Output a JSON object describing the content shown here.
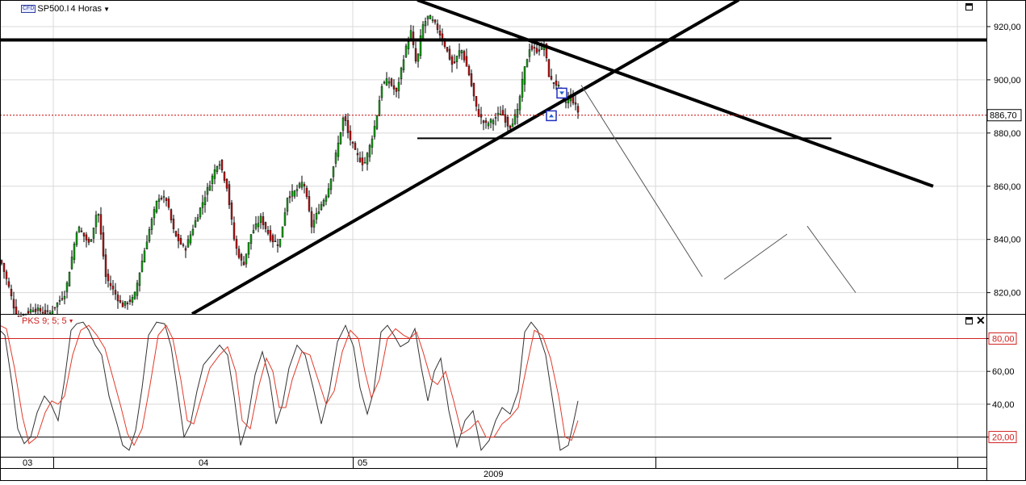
{
  "header": {
    "badge": "CFD",
    "symbol": "SP500.I",
    "timeframe": "4 Horas",
    "dropdown_icon": "chevron-down-icon"
  },
  "indicator": {
    "label": "PKS 9; 5; 5",
    "dropdown_icon": "chevron-down-icon",
    "overbought": 80,
    "oversold": 20,
    "colors": {
      "k": "#333333",
      "d": "#e23a2a",
      "levels": "#d02020"
    }
  },
  "price_axis": {
    "ticks": [
      "920,00",
      "900,00",
      "880,00",
      "860,00",
      "840,00",
      "820,00"
    ],
    "last_price_label": "886,70",
    "last_price": 886.7
  },
  "osc_axis": {
    "ticks": [
      "80,00",
      "60,00",
      "40,00",
      "20,00"
    ]
  },
  "time_axis": {
    "months": [
      "03",
      "04",
      "05"
    ],
    "year": "2009"
  },
  "pane_buttons": {
    "maximize_icon": "maximize-icon",
    "close_icon": "close-icon"
  },
  "chart_data": [
    {
      "type": "candlestick",
      "ylim": [
        812,
        930
      ],
      "grid": true,
      "price_anchors": [
        [
          0,
          832
        ],
        [
          10,
          822
        ],
        [
          20,
          810
        ],
        [
          40,
          814
        ],
        [
          60,
          812
        ],
        [
          80,
          820
        ],
        [
          95,
          845
        ],
        [
          110,
          838
        ],
        [
          120,
          852
        ],
        [
          130,
          826
        ],
        [
          150,
          815
        ],
        [
          165,
          818
        ],
        [
          175,
          832
        ],
        [
          185,
          845
        ],
        [
          195,
          856
        ],
        [
          205,
          855
        ],
        [
          215,
          842
        ],
        [
          228,
          836
        ],
        [
          240,
          846
        ],
        [
          255,
          858
        ],
        [
          270,
          870
        ],
        [
          280,
          860
        ],
        [
          290,
          838
        ],
        [
          300,
          830
        ],
        [
          310,
          842
        ],
        [
          322,
          848
        ],
        [
          335,
          840
        ],
        [
          345,
          838
        ],
        [
          355,
          856
        ],
        [
          365,
          858
        ],
        [
          375,
          862
        ],
        [
          385,
          845
        ],
        [
          395,
          852
        ],
        [
          405,
          858
        ],
        [
          418,
          876
        ],
        [
          425,
          887
        ],
        [
          430,
          880
        ],
        [
          440,
          872
        ],
        [
          450,
          868
        ],
        [
          458,
          876
        ],
        [
          465,
          885
        ],
        [
          472,
          898
        ],
        [
          480,
          900
        ],
        [
          490,
          895
        ],
        [
          500,
          910
        ],
        [
          508,
          918
        ],
        [
          515,
          905
        ],
        [
          522,
          920
        ],
        [
          530,
          924
        ],
        [
          540,
          920
        ],
        [
          550,
          913
        ],
        [
          560,
          905
        ],
        [
          570,
          912
        ],
        [
          580,
          902
        ],
        [
          590,
          888
        ],
        [
          600,
          883
        ],
        [
          610,
          885
        ],
        [
          620,
          888
        ],
        [
          630,
          882
        ],
        [
          640,
          888
        ],
        [
          648,
          903
        ],
        [
          655,
          912
        ],
        [
          665,
          911
        ],
        [
          673,
          913
        ],
        [
          680,
          900
        ],
        [
          690,
          898
        ],
        [
          698,
          891
        ],
        [
          706,
          894
        ],
        [
          715,
          888
        ]
      ],
      "overlay_lines": [
        {
          "name": "upper-trendline",
          "from": [
            517,
            930
          ],
          "to": [
            1156,
            860
          ]
        },
        {
          "name": "lower-trendline",
          "from": [
            238,
            812
          ],
          "to": [
            915,
            930
          ]
        },
        {
          "name": "resistance-line",
          "from": [
            0,
            915
          ],
          "to": [
            1222,
            915
          ]
        },
        {
          "name": "support-line",
          "from": [
            517,
            878
          ],
          "to": [
            1030,
            878
          ]
        }
      ],
      "projection_path": [
        [
          720,
          898
        ],
        [
          870,
          826
        ],
        [
          897,
          825
        ],
        [
          975,
          842
        ],
        [
          1000,
          845
        ],
        [
          1060,
          820
        ]
      ]
    },
    {
      "type": "line",
      "ylim": [
        8,
        95
      ],
      "levels": [
        80,
        20
      ],
      "series": [
        {
          "color": "#333333",
          "anchors": [
            [
              0,
              85
            ],
            [
              6,
              82
            ],
            [
              15,
              52
            ],
            [
              22,
              25
            ],
            [
              30,
              16
            ],
            [
              38,
              20
            ],
            [
              46,
              35
            ],
            [
              55,
              45
            ],
            [
              63,
              40
            ],
            [
              72,
              30
            ],
            [
              80,
              55
            ],
            [
              88,
              85
            ],
            [
              95,
              89
            ],
            [
              103,
              90
            ],
            [
              110,
              85
            ],
            [
              118,
              76
            ],
            [
              126,
              70
            ],
            [
              135,
              45
            ],
            [
              145,
              28
            ],
            [
              152,
              15
            ],
            [
              160,
              12
            ],
            [
              168,
              24
            ],
            [
              176,
              50
            ],
            [
              184,
              82
            ],
            [
              194,
              90
            ],
            [
              204,
              89
            ],
            [
              212,
              75
            ],
            [
              220,
              48
            ],
            [
              228,
              20
            ],
            [
              236,
              28
            ],
            [
              244,
              48
            ],
            [
              252,
              64
            ],
            [
              262,
              70
            ],
            [
              272,
              76
            ],
            [
              282,
              70
            ],
            [
              290,
              45
            ],
            [
              298,
              15
            ],
            [
              306,
              28
            ],
            [
              316,
              58
            ],
            [
              325,
              72
            ],
            [
              334,
              55
            ],
            [
              342,
              28
            ],
            [
              350,
              40
            ],
            [
              358,
              62
            ],
            [
              368,
              76
            ],
            [
              378,
              70
            ],
            [
              388,
              50
            ],
            [
              398,
              28
            ],
            [
              408,
              48
            ],
            [
              418,
              78
            ],
            [
              428,
              88
            ],
            [
              438,
              75
            ],
            [
              446,
              50
            ],
            [
              455,
              34
            ],
            [
              463,
              48
            ],
            [
              472,
              84
            ],
            [
              480,
              88
            ],
            [
              488,
              82
            ],
            [
              496,
              75
            ],
            [
              506,
              78
            ],
            [
              514,
              86
            ],
            [
              522,
              62
            ],
            [
              530,
              42
            ],
            [
              538,
              60
            ],
            [
              546,
              68
            ],
            [
              556,
              36
            ],
            [
              566,
              14
            ],
            [
              576,
              30
            ],
            [
              586,
              36
            ],
            [
              596,
              12
            ],
            [
              606,
              18
            ],
            [
              614,
              30
            ],
            [
              622,
              38
            ],
            [
              632,
              34
            ],
            [
              642,
              48
            ],
            [
              650,
              84
            ],
            [
              658,
              90
            ],
            [
              666,
              85
            ],
            [
              676,
              70
            ],
            [
              686,
              38
            ],
            [
              694,
              12
            ],
            [
              704,
              15
            ],
            [
              710,
              28
            ],
            [
              716,
              42
            ]
          ]
        },
        {
          "color": "#e23a2a",
          "anchors": [
            [
              0,
              88
            ],
            [
              8,
              86
            ],
            [
              18,
              62
            ],
            [
              28,
              32
            ],
            [
              36,
              16
            ],
            [
              46,
              20
            ],
            [
              56,
              35
            ],
            [
              64,
              42
            ],
            [
              72,
              40
            ],
            [
              80,
              45
            ],
            [
              90,
              70
            ],
            [
              100,
              85
            ],
            [
              110,
              88
            ],
            [
              120,
              82
            ],
            [
              130,
              74
            ],
            [
              140,
              56
            ],
            [
              150,
              38
            ],
            [
              158,
              22
            ],
            [
              166,
              15
            ],
            [
              176,
              25
            ],
            [
              186,
              52
            ],
            [
              196,
              82
            ],
            [
              206,
              88
            ],
            [
              214,
              80
            ],
            [
              224,
              55
            ],
            [
              232,
              30
            ],
            [
              240,
              28
            ],
            [
              250,
              45
            ],
            [
              260,
              62
            ],
            [
              272,
              70
            ],
            [
              282,
              75
            ],
            [
              292,
              60
            ],
            [
              300,
              30
            ],
            [
              310,
              25
            ],
            [
              320,
              50
            ],
            [
              330,
              68
            ],
            [
              338,
              60
            ],
            [
              346,
              38
            ],
            [
              354,
              38
            ],
            [
              362,
              55
            ],
            [
              374,
              72
            ],
            [
              384,
              70
            ],
            [
              394,
              55
            ],
            [
              404,
              40
            ],
            [
              414,
              48
            ],
            [
              424,
              72
            ],
            [
              434,
              85
            ],
            [
              444,
              80
            ],
            [
              452,
              60
            ],
            [
              460,
              44
            ],
            [
              470,
              55
            ],
            [
              480,
              80
            ],
            [
              490,
              86
            ],
            [
              500,
              82
            ],
            [
              508,
              80
            ],
            [
              516,
              84
            ],
            [
              524,
              72
            ],
            [
              534,
              55
            ],
            [
              542,
              52
            ],
            [
              552,
              60
            ],
            [
              562,
              42
            ],
            [
              572,
              22
            ],
            [
              582,
              25
            ],
            [
              592,
              30
            ],
            [
              602,
              20
            ],
            [
              612,
              20
            ],
            [
              622,
              28
            ],
            [
              632,
              32
            ],
            [
              642,
              38
            ],
            [
              652,
              62
            ],
            [
              662,
              85
            ],
            [
              672,
              82
            ],
            [
              682,
              68
            ],
            [
              692,
              45
            ],
            [
              700,
              20
            ],
            [
              708,
              18
            ],
            [
              716,
              30
            ]
          ]
        }
      ]
    }
  ]
}
